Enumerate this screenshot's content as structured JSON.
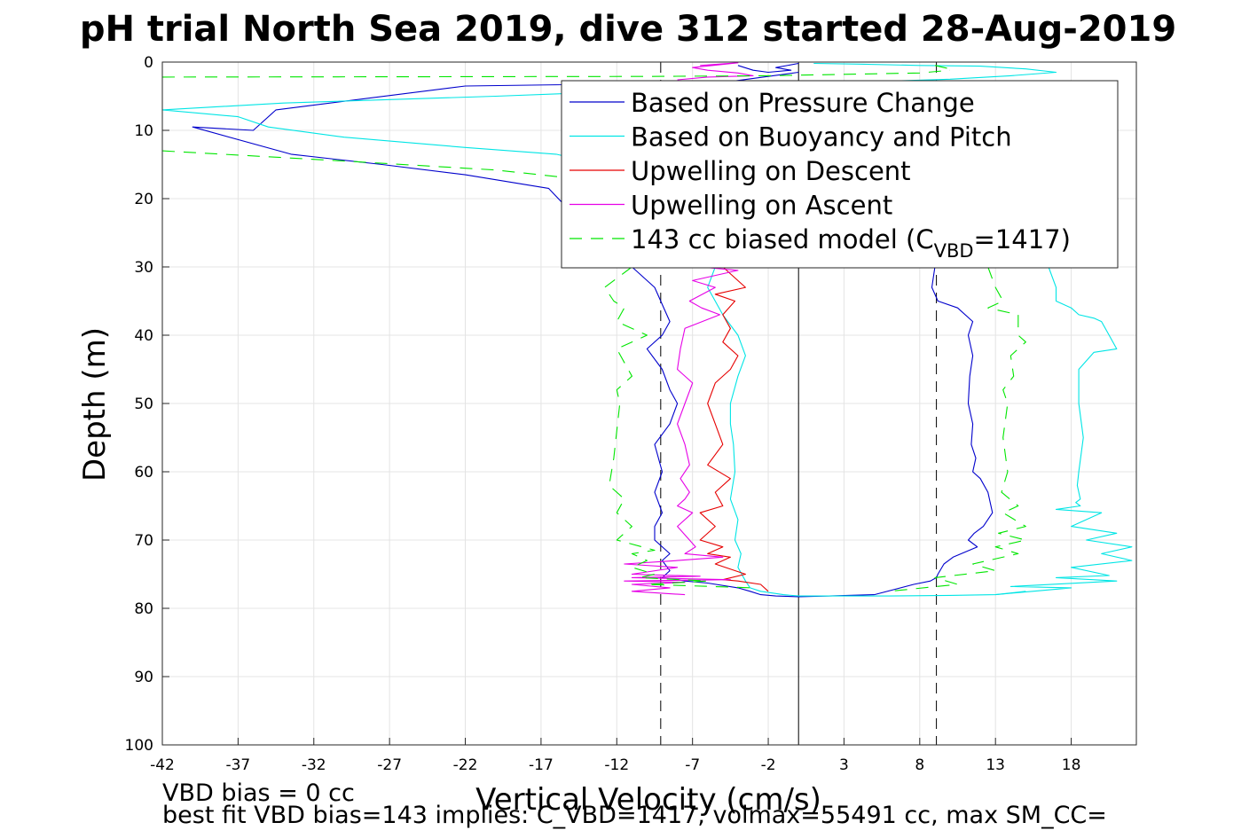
{
  "chart_data": {
    "type": "line",
    "title": "pH trial North Sea 2019, dive 312 started 28-Aug-2019",
    "xlabel": "Vertical Velocity (cm/s)",
    "ylabel": "Depth (m)",
    "xlim": [
      -42,
      22.3
    ],
    "ylim": [
      0,
      100
    ],
    "y_reversed": true,
    "grid": true,
    "legend_position": "top-right",
    "x_ticks": [
      -42,
      -37,
      -32,
      -27,
      -22,
      -17,
      -12,
      -7,
      -2,
      3,
      8,
      13,
      18
    ],
    "x_tick_labels": [
      "-42",
      "-37",
      "-32",
      "-27",
      "-22",
      "-17",
      "-12",
      "-7",
      "-2",
      "3",
      "8",
      "13",
      "18"
    ],
    "y_ticks": [
      0,
      10,
      20,
      30,
      40,
      50,
      60,
      70,
      80,
      90,
      100
    ],
    "y_tick_labels": [
      "0",
      "10",
      "20",
      "30",
      "40",
      "50",
      "60",
      "70",
      "80",
      "90",
      "100"
    ],
    "reference_lines": [
      {
        "x": 0,
        "style": "solid",
        "color": "#000000"
      },
      {
        "x": -9.1,
        "style": "dashed",
        "color": "#000000"
      },
      {
        "x": 9.1,
        "style": "dashed",
        "color": "#000000"
      }
    ],
    "series": [
      {
        "name": "Based on Pressure Change",
        "color": "#0000cc",
        "style": "solid",
        "legend_label": "Based on Pressure Change",
        "segments": [
          {
            "x": [
              0,
              -5,
              -22,
              -34.5,
              -36,
              -40,
              -33.5,
              -27.5,
              -22,
              -16.5,
              -15,
              -12.5,
              -11,
              -9.5,
              -8.5,
              -9,
              -10,
              -9,
              -8.5,
              -8,
              -8.5,
              -9.5,
              -9,
              -9.5,
              -9,
              -9.5,
              -9.5,
              -8.5,
              -9,
              -8.5,
              -9,
              -8,
              -7.5,
              -6,
              -4,
              -3.2,
              -2.5,
              -1.5,
              0,
              2,
              5
            ],
            "y": [
              1.5,
              3,
              3.5,
              7,
              10,
              9.5,
              13.5,
              15,
              16.5,
              18.5,
              22,
              26,
              30,
              33,
              38,
              40,
              42,
              45,
              48,
              50,
              53,
              56,
              60,
              63,
              66,
              68,
              70,
              72,
              73,
              74.5,
              75.5,
              75.8,
              76,
              76.3,
              77,
              77.5,
              78,
              78.2,
              78.3,
              78.2,
              78
            ]
          },
          {
            "x": [
              9,
              8.8,
              9.2,
              10.5,
              11.5,
              11.2,
              11.5,
              11.3,
              11.2,
              11.5,
              11.4,
              11.7,
              11.5,
              12,
              12.5,
              12.8,
              12.2,
              11.6,
              11.2,
              11.8,
              10.2,
              9.6,
              9.2,
              9.1,
              8.7,
              7.6,
              5
            ],
            "y": [
              30,
              33,
              35,
              36,
              38,
              40,
              43,
              46,
              50,
              53,
              56,
              58,
              60,
              61,
              63,
              66,
              68,
              69,
              70,
              71,
              72.5,
              73.5,
              75,
              75.5,
              76,
              76.5,
              78
            ]
          },
          {
            "x": [
              -4,
              -3,
              -2,
              -0.5,
              -1.5,
              0
            ],
            "y": [
              0.5,
              1.2,
              1.5,
              1.2,
              0.8,
              0.2
            ]
          }
        ]
      },
      {
        "name": "Based on Buoyancy and Pitch",
        "color": "#00e5e5",
        "style": "solid",
        "legend_label": "Based on Buoyancy and Pitch",
        "segments": [
          {
            "x": [
              1,
              4,
              8,
              12,
              15,
              17,
              14,
              10,
              3,
              -8,
              -20,
              -34,
              -42,
              -37,
              -35,
              -30,
              -22,
              -16,
              -13,
              -11,
              -7,
              -6.5,
              -5.5,
              -6,
              -5,
              -4,
              -3.5,
              -4,
              -4.5,
              -4.5,
              -4.3,
              -4.2,
              -4.5,
              -4,
              -4.2,
              -3.8,
              -4,
              -3.5,
              -3.2,
              -2.5,
              -1,
              0,
              6,
              10,
              13,
              15
            ],
            "y": [
              0.2,
              0.3,
              0.5,
              0.6,
              1,
              1.5,
              2,
              2.5,
              3,
              4,
              5,
              6,
              7,
              8,
              9.5,
              11,
              12.5,
              13.5,
              15,
              17,
              20,
              26,
              30,
              33,
              37,
              40,
              43,
              46,
              50,
              53,
              56,
              60,
              64,
              67,
              70,
              72,
              74,
              76,
              77,
              77.5,
              78,
              78.2,
              78.2,
              78.1,
              78,
              77.5
            ]
          },
          {
            "x": [
              16.5,
              17,
              17,
              18,
              18.5,
              19.5,
              20,
              20.5,
              21,
              19.5,
              18.5,
              18.5,
              18.8,
              18.5,
              18.4,
              18.6,
              18.3,
              18.6,
              17,
              20,
              18,
              21,
              19,
              22,
              20,
              22,
              18,
              20.5,
              17,
              21,
              14,
              18,
              13
            ],
            "y": [
              30,
              33,
              35,
              36,
              37,
              37.5,
              38,
              40,
              42,
              42.5,
              45,
              50,
              55,
              60,
              62,
              64,
              64.5,
              65,
              65.5,
              66,
              68,
              69,
              70,
              71,
              72,
              73,
              74,
              75.2,
              75.5,
              76,
              76.8,
              77,
              78
            ]
          }
        ]
      },
      {
        "name": "Upwelling on Descent",
        "color": "#e60000",
        "style": "solid",
        "legend_label": "Upwelling on Descent",
        "segments": [
          {
            "x": [
              -5,
              -3.5,
              -5.5,
              -4.2,
              -5,
              -4.5,
              -5,
              -4,
              -4.5,
              -5.5,
              -6,
              -5.5,
              -5,
              -6,
              -4.5,
              -5.5,
              -5,
              -6.5,
              -5.5,
              -6.5,
              -5,
              -6,
              -4.5,
              -5.5,
              -3.5,
              -5,
              -4,
              -2.5,
              -2
            ],
            "y": [
              30,
              33,
              34,
              35,
              37,
              39,
              41,
              43,
              45,
              47,
              50,
              53,
              56,
              59,
              61,
              63,
              65,
              66,
              68,
              70,
              71,
              72,
              72.5,
              73.5,
              75,
              75.8,
              76,
              76.5,
              77.5
            ]
          }
        ]
      },
      {
        "name": "Upwelling on Ascent",
        "color": "#e600e6",
        "style": "solid",
        "legend_label": "Upwelling on Ascent",
        "segments": [
          {
            "x": [
              -6.5,
              -4,
              -7,
              -5.5,
              -7.2,
              -6.4,
              -5.2,
              -7.5,
              -7.8,
              -8,
              -7,
              -7.5,
              -8,
              -7.5,
              -7.2,
              -7.8,
              -7.2,
              -7.5,
              -8,
              -7,
              -8,
              -7.2,
              -6.8,
              -7.5,
              -5,
              -8,
              -11.5,
              -8,
              -11,
              -6.5,
              -11,
              -4.5,
              -11.5,
              -7.5,
              -11,
              -8.5,
              -11,
              -7.5
            ],
            "y": [
              30,
              30.5,
              32,
              33,
              35,
              36,
              37,
              39,
              42,
              45,
              47,
              50,
              53,
              56,
              59,
              61,
              63,
              64,
              65,
              66,
              68,
              70,
              71,
              72,
              72.5,
              73,
              73.5,
              74,
              75,
              75.3,
              75.5,
              75.8,
              76,
              76.2,
              76.5,
              77,
              77.5,
              78
            ]
          },
          {
            "x": [
              -6.5,
              -4,
              -7,
              -6,
              -4,
              -3,
              -6,
              -8
            ],
            "y": [
              0.5,
              0.1,
              0.8,
              1.2,
              1.6,
              2,
              2.2,
              2.6
            ]
          }
        ]
      },
      {
        "name": "143 cc biased model (C_VBD=1417)",
        "color": "#00e600",
        "style": "dashed",
        "legend_label": "143 cc biased model (C",
        "legend_sub": "VBD",
        "legend_tail": "=1417)",
        "segments": [
          {
            "x": [
              -42,
              -10,
              -2,
              8,
              10
            ],
            "y": [
              2.2,
              2.1,
              2,
              1.6,
              1.2
            ]
          },
          {
            "x": [
              -42,
              -30,
              -20,
              -15,
              -12
            ],
            "y": [
              13,
              14.5,
              15.8,
              17,
              18
            ]
          },
          {
            "x": [
              -11,
              -12.8,
              -12.2,
              -11.5,
              -12,
              -10,
              -12,
              -11.5,
              -11,
              -12,
              -11.8,
              -12,
              -12.2,
              -12.5,
              -11.5,
              -12,
              -11,
              -12,
              -9.5,
              -11,
              -10,
              -11,
              -9.5,
              -10.5,
              -6,
              -10,
              -3
            ],
            "y": [
              30,
              33,
              35,
              36,
              38,
              40,
              42,
              44,
              46,
              48,
              50,
              54,
              58,
              62,
              64,
              66,
              68,
              70,
              71.5,
              72,
              73,
              74,
              75,
              75.5,
              76,
              76.5,
              77
            ]
          },
          {
            "x": [
              12.5,
              13,
              13.5,
              12.5,
              14.5,
              14.5,
              15,
              14,
              14.2,
              13.5,
              13.8,
              13.5,
              13.8,
              13.4,
              14.5,
              13.5,
              15,
              13.2,
              15,
              13,
              14.5,
              11.5,
              13,
              9,
              10.5,
              6
            ],
            "y": [
              30,
              33,
              35,
              36,
              37,
              40,
              41,
              43,
              46,
              48,
              50,
              55,
              60,
              63,
              65,
              66,
              68,
              69,
              70,
              71,
              72,
              73.5,
              74.5,
              75.5,
              76.5,
              77.5
            ]
          },
          {
            "x": [
              9,
              10
            ],
            "y": [
              0.5,
              1
            ]
          }
        ]
      }
    ]
  },
  "footer": {
    "line1": "VBD bias = 0 cc",
    "line2": "best fit VBD bias=143 implies: C_VBD=1417, volmax=55491 cc, max SM_CC="
  }
}
